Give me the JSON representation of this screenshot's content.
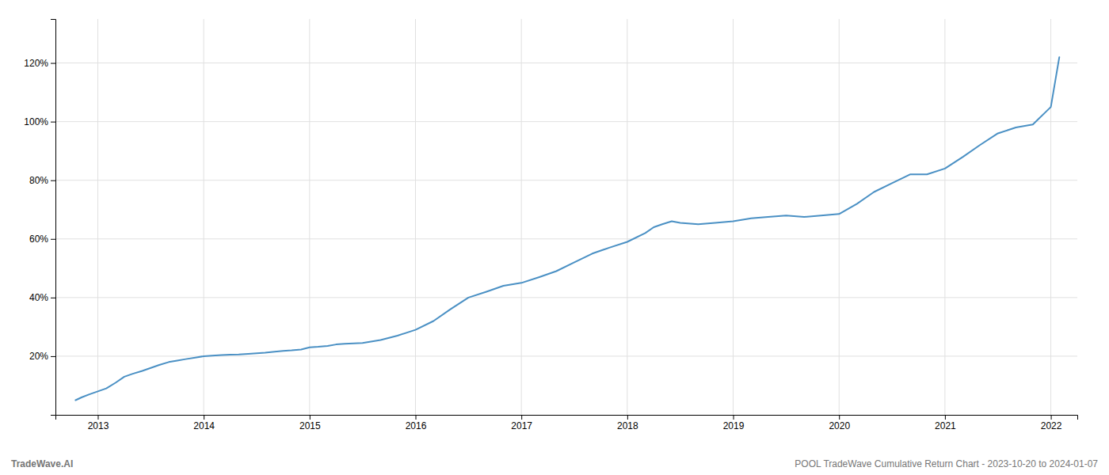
{
  "chart_data": {
    "type": "line",
    "annotations": [
      "TradeWave.AI",
      "POOL TradeWave Cumulative Return Chart - 2023-10-20 to 2024-01-07"
    ],
    "x": [
      2012.79,
      2012.85,
      2012.92,
      2013.0,
      2013.08,
      2013.17,
      2013.25,
      2013.33,
      2013.42,
      2013.5,
      2013.58,
      2013.67,
      2013.75,
      2013.83,
      2013.92,
      2014.0,
      2014.08,
      2014.17,
      2014.25,
      2014.33,
      2014.42,
      2014.5,
      2014.58,
      2014.67,
      2014.75,
      2014.83,
      2014.92,
      2015.0,
      2015.08,
      2015.17,
      2015.25,
      2015.33,
      2015.5,
      2015.67,
      2015.83,
      2016.0,
      2016.17,
      2016.33,
      2016.5,
      2016.67,
      2016.83,
      2017.0,
      2017.17,
      2017.33,
      2017.5,
      2017.67,
      2017.83,
      2018.0,
      2018.17,
      2018.25,
      2018.33,
      2018.42,
      2018.5,
      2018.67,
      2018.83,
      2019.0,
      2019.17,
      2019.33,
      2019.5,
      2019.67,
      2019.83,
      2020.0,
      2020.17,
      2020.33,
      2020.5,
      2020.67,
      2020.83,
      2021.0,
      2021.17,
      2021.33,
      2021.5,
      2021.67,
      2021.83,
      2022.0,
      2022.08
    ],
    "values": [
      5,
      6,
      7,
      8,
      9,
      11,
      13,
      14,
      15,
      16,
      17,
      18,
      18.5,
      19,
      19.5,
      20,
      20.2,
      20.4,
      20.5,
      20.6,
      20.8,
      21,
      21.2,
      21.5,
      21.8,
      22,
      22.3,
      23,
      23.2,
      23.5,
      24,
      24.2,
      24.5,
      25.5,
      27,
      29,
      32,
      36,
      40,
      42,
      44,
      45,
      47,
      49,
      52,
      55,
      57,
      59,
      62,
      64,
      65,
      66,
      65.5,
      65,
      65.5,
      66,
      67,
      67.5,
      68,
      67.5,
      68,
      68.5,
      72,
      76,
      79,
      82,
      82,
      84,
      88,
      92,
      96,
      98,
      99,
      105,
      122
    ],
    "color": "#4a90c4",
    "xlim": [
      2012.6,
      2022.25
    ],
    "xticks": [
      2013,
      2014,
      2015,
      2016,
      2017,
      2018,
      2019,
      2020,
      2021,
      2022
    ],
    "ylim": [
      0,
      135
    ],
    "yticks": [
      {
        "value": 20,
        "label": "20%"
      },
      {
        "value": 40,
        "label": "40%"
      },
      {
        "value": 60,
        "label": "60%"
      },
      {
        "value": 80,
        "label": "80%"
      },
      {
        "value": 100,
        "label": "100%"
      },
      {
        "value": 120,
        "label": "120%"
      }
    ],
    "grid": true
  }
}
